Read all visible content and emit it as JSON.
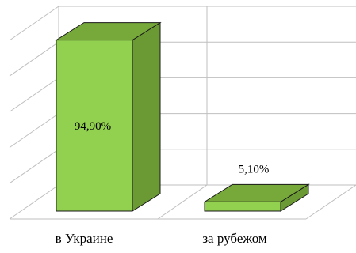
{
  "chart_data": {
    "type": "bar",
    "style": "3d-column",
    "categories": [
      "в Украине",
      "за рубежом"
    ],
    "values": [
      94.9,
      5.1
    ],
    "data_labels": [
      "94,90%",
      "5,10%"
    ],
    "ylim": [
      0,
      100
    ],
    "grid": true,
    "legend": "none",
    "title": "",
    "xlabel": "",
    "ylabel": ""
  },
  "colors": {
    "bar_front": "#92d050",
    "bar_top": "#77a83a",
    "bar_side": "#6b9a35",
    "grid": "#bfbfbf"
  }
}
